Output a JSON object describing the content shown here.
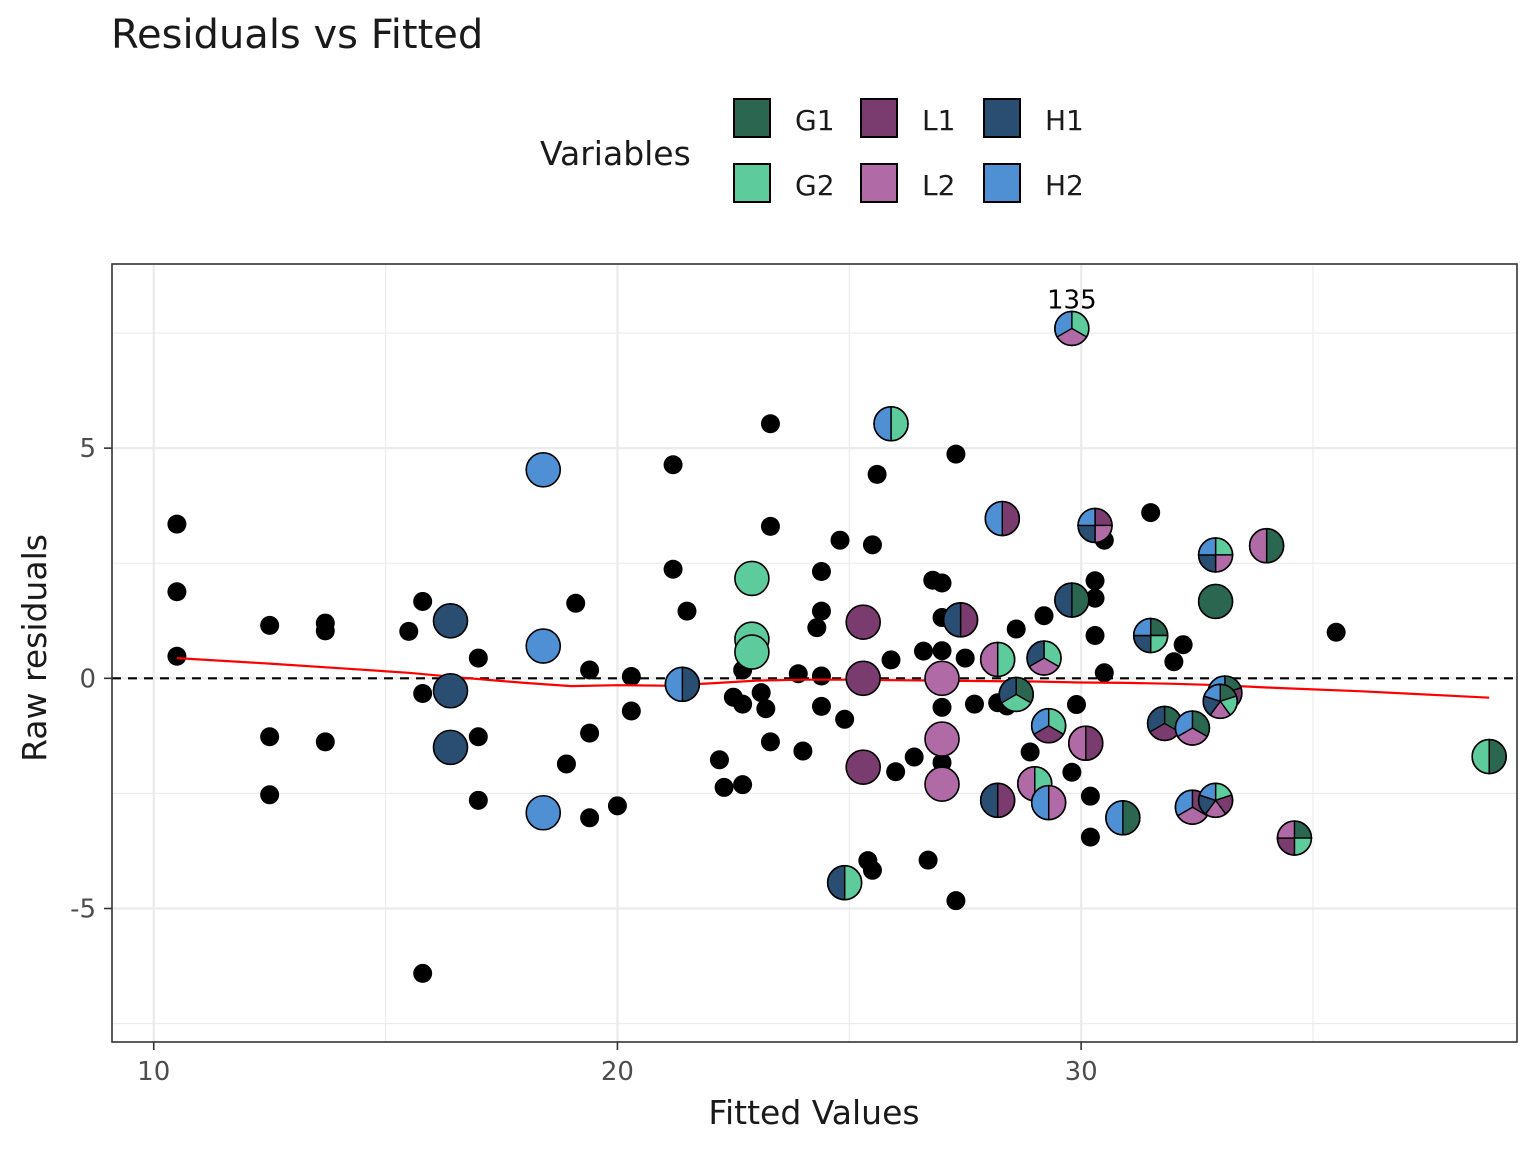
{
  "chart_data": {
    "type": "scatter",
    "title": "Residuals vs Fitted",
    "xlabel": "Fitted Values",
    "ylabel": "Raw residuals",
    "xlim": [
      9.1,
      39.4
    ],
    "ylim": [
      -7.9,
      9.0
    ],
    "xticks": [
      10,
      20,
      30
    ],
    "yticks": [
      -5,
      0,
      5
    ],
    "xtick_labels": [
      "10",
      "20",
      "30"
    ],
    "ytick_labels": [
      "-5",
      "0",
      "5"
    ],
    "grid": true,
    "reference_line": {
      "y": 0,
      "style": "dashed",
      "color": "#000000"
    },
    "smooth": {
      "color": "#ff0000",
      "x": [
        10.5,
        12.5,
        14.0,
        15.5,
        16.8,
        18.0,
        19.0,
        20.0,
        21.0,
        22.0,
        23.0,
        24.0,
        25.0,
        26.0,
        27.0,
        28.0,
        29.0,
        30.0,
        31.0,
        32.0,
        33.0,
        34.0,
        35.0,
        36.0,
        37.0,
        38.0,
        38.8
      ],
      "y": [
        0.44,
        0.32,
        0.22,
        0.12,
        0.0,
        -0.1,
        -0.17,
        -0.15,
        -0.16,
        -0.11,
        -0.05,
        -0.03,
        -0.03,
        -0.04,
        -0.05,
        -0.06,
        -0.07,
        -0.09,
        -0.1,
        -0.12,
        -0.15,
        -0.2,
        -0.24,
        -0.28,
        -0.33,
        -0.38,
        -0.42
      ]
    },
    "legend": {
      "title": "Variables",
      "position": "top",
      "entries": [
        {
          "label": "G1",
          "color": "#2B6651"
        },
        {
          "label": "L1",
          "color": "#7A3C6E"
        },
        {
          "label": "H1",
          "color": "#2A4D72"
        },
        {
          "label": "G2",
          "color": "#5ECB9D"
        },
        {
          "label": "L2",
          "color": "#B06AA6"
        },
        {
          "label": "H2",
          "color": "#4F90D5"
        }
      ]
    },
    "point_label": {
      "text": "135",
      "x": 29.8,
      "y": 7.6
    },
    "points": [
      [
        10.5,
        3.35
      ],
      [
        10.5,
        1.88
      ],
      [
        10.5,
        0.48
      ],
      [
        12.5,
        1.15
      ],
      [
        12.5,
        -1.27
      ],
      [
        12.5,
        -2.53
      ],
      [
        13.7,
        1.2
      ],
      [
        13.7,
        1.03
      ],
      [
        13.7,
        -1.38
      ],
      [
        15.5,
        1.02
      ],
      [
        15.8,
        1.67
      ],
      [
        15.8,
        -0.33
      ],
      [
        15.8,
        -6.41
      ],
      [
        17.0,
        0.44
      ],
      [
        17.0,
        -1.27
      ],
      [
        17.0,
        -2.65
      ],
      [
        18.9,
        -1.86
      ],
      [
        19.1,
        1.63
      ],
      [
        19.4,
        0.18
      ],
      [
        19.4,
        -1.19
      ],
      [
        19.4,
        -3.03
      ],
      [
        20.0,
        -2.77
      ],
      [
        20.3,
        0.04
      ],
      [
        20.3,
        -0.71
      ],
      [
        21.2,
        4.64
      ],
      [
        21.2,
        2.37
      ],
      [
        21.5,
        1.46
      ],
      [
        22.2,
        -1.77
      ],
      [
        22.3,
        -2.37
      ],
      [
        22.5,
        -0.41
      ],
      [
        22.7,
        0.18
      ],
      [
        22.7,
        -0.56
      ],
      [
        22.7,
        -2.31
      ],
      [
        23.1,
        -0.31
      ],
      [
        23.2,
        -0.66
      ],
      [
        23.3,
        5.53
      ],
      [
        23.3,
        3.3
      ],
      [
        23.3,
        -1.38
      ],
      [
        23.9,
        0.1
      ],
      [
        24.0,
        -1.58
      ],
      [
        24.4,
        2.32
      ],
      [
        24.4,
        1.46
      ],
      [
        24.4,
        0.05
      ],
      [
        24.4,
        -0.61
      ],
      [
        24.3,
        1.1
      ],
      [
        24.8,
        3.0
      ],
      [
        24.9,
        -0.89
      ],
      [
        25.5,
        2.9
      ],
      [
        25.6,
        4.43
      ],
      [
        25.4,
        -3.96
      ],
      [
        25.5,
        -4.17
      ],
      [
        25.9,
        0.4
      ],
      [
        26.0,
        -2.03
      ],
      [
        26.4,
        -1.71
      ],
      [
        26.6,
        0.59
      ],
      [
        26.7,
        -3.95
      ],
      [
        26.8,
        2.13
      ],
      [
        27.0,
        2.07
      ],
      [
        27.0,
        1.32
      ],
      [
        27.0,
        0.6
      ],
      [
        27.0,
        -0.63
      ],
      [
        27.0,
        -1.83
      ],
      [
        27.3,
        4.87
      ],
      [
        27.3,
        -4.83
      ],
      [
        27.5,
        0.44
      ],
      [
        27.7,
        -0.56
      ],
      [
        28.2,
        -0.53
      ],
      [
        28.4,
        -0.6
      ],
      [
        28.6,
        1.07
      ],
      [
        28.9,
        -1.6
      ],
      [
        29.2,
        1.36
      ],
      [
        29.8,
        -2.04
      ],
      [
        29.9,
        -0.57
      ],
      [
        30.1,
        -1.31
      ],
      [
        30.2,
        -2.56
      ],
      [
        30.2,
        -3.45
      ],
      [
        30.3,
        2.12
      ],
      [
        30.3,
        1.74
      ],
      [
        30.3,
        0.93
      ],
      [
        30.5,
        0.12
      ],
      [
        30.5,
        3.0
      ],
      [
        31.5,
        3.6
      ],
      [
        32.0,
        0.36
      ],
      [
        32.2,
        0.73
      ],
      [
        35.5,
        1.0
      ]
    ],
    "markers": [
      {
        "x": 18.4,
        "y": 4.53,
        "vars": [
          "H2"
        ]
      },
      {
        "x": 18.4,
        "y": 0.7,
        "vars": [
          "H2"
        ]
      },
      {
        "x": 18.4,
        "y": -2.92,
        "vars": [
          "H2"
        ]
      },
      {
        "x": 16.4,
        "y": 1.25,
        "vars": [
          "H1"
        ]
      },
      {
        "x": 16.4,
        "y": -0.27,
        "vars": [
          "H1"
        ]
      },
      {
        "x": 16.4,
        "y": -1.5,
        "vars": [
          "H1"
        ]
      },
      {
        "x": 22.9,
        "y": 2.17,
        "vars": [
          "G2"
        ]
      },
      {
        "x": 22.9,
        "y": 0.85,
        "vars": [
          "G2"
        ]
      },
      {
        "x": 22.9,
        "y": 0.57,
        "vars": [
          "G2"
        ]
      },
      {
        "x": 21.4,
        "y": -0.13,
        "vars": [
          "H1",
          "H2"
        ]
      },
      {
        "x": 24.9,
        "y": -4.44,
        "vars": [
          "G2",
          "H1"
        ]
      },
      {
        "x": 25.9,
        "y": 5.53,
        "vars": [
          "G2",
          "H2"
        ]
      },
      {
        "x": 25.3,
        "y": 1.22,
        "vars": [
          "L1"
        ]
      },
      {
        "x": 25.3,
        "y": 0.0,
        "vars": [
          "L1"
        ]
      },
      {
        "x": 25.3,
        "y": -1.93,
        "vars": [
          "L1"
        ]
      },
      {
        "x": 27.0,
        "y": 0.0,
        "vars": [
          "L2"
        ]
      },
      {
        "x": 27.0,
        "y": -1.32,
        "vars": [
          "L2"
        ]
      },
      {
        "x": 27.0,
        "y": -2.3,
        "vars": [
          "L2"
        ]
      },
      {
        "x": 27.4,
        "y": 1.27,
        "vars": [
          "L1",
          "H1"
        ]
      },
      {
        "x": 28.3,
        "y": 3.47,
        "vars": [
          "L1",
          "H2"
        ]
      },
      {
        "x": 28.2,
        "y": 0.41,
        "vars": [
          "G2",
          "L2"
        ]
      },
      {
        "x": 28.2,
        "y": -2.65,
        "vars": [
          "L1",
          "H1"
        ]
      },
      {
        "x": 28.6,
        "y": -0.35,
        "vars": [
          "G1",
          "G2",
          "H1"
        ]
      },
      {
        "x": 29.0,
        "y": -2.29,
        "vars": [
          "G2",
          "L2"
        ]
      },
      {
        "x": 29.2,
        "y": 0.44,
        "vars": [
          "G2",
          "L2",
          "H1"
        ]
      },
      {
        "x": 29.3,
        "y": -1.03,
        "vars": [
          "G2",
          "L1",
          "H2"
        ]
      },
      {
        "x": 29.3,
        "y": -2.7,
        "vars": [
          "L2",
          "H2"
        ]
      },
      {
        "x": 29.8,
        "y": 7.6,
        "vars": [
          "G2",
          "L2",
          "H2"
        ]
      },
      {
        "x": 29.8,
        "y": 1.7,
        "vars": [
          "G1",
          "H1"
        ]
      },
      {
        "x": 30.1,
        "y": -1.41,
        "vars": [
          "L1",
          "L2"
        ]
      },
      {
        "x": 30.3,
        "y": 3.32,
        "vars": [
          "L1",
          "L2",
          "H1",
          "H2"
        ]
      },
      {
        "x": 30.9,
        "y": -3.03,
        "vars": [
          "G1",
          "H2"
        ]
      },
      {
        "x": 31.5,
        "y": 0.93,
        "vars": [
          "G1",
          "G2",
          "H1",
          "H2"
        ]
      },
      {
        "x": 31.8,
        "y": -0.98,
        "vars": [
          "G1",
          "L1",
          "H1"
        ]
      },
      {
        "x": 32.4,
        "y": -1.08,
        "vars": [
          "G1",
          "L2",
          "H2"
        ]
      },
      {
        "x": 32.4,
        "y": -2.8,
        "vars": [
          "L1",
          "L2",
          "H2"
        ]
      },
      {
        "x": 32.9,
        "y": 2.68,
        "vars": [
          "G2",
          "L2",
          "H1",
          "H2"
        ]
      },
      {
        "x": 32.9,
        "y": 1.67,
        "vars": [
          "G1"
        ]
      },
      {
        "x": 32.9,
        "y": -2.65,
        "vars": [
          "G2",
          "L1",
          "L2",
          "H1",
          "H2"
        ]
      },
      {
        "x": 33.1,
        "y": -0.32,
        "vars": [
          "G1",
          "L1",
          "L2",
          "H1",
          "H2"
        ]
      },
      {
        "x": 33.0,
        "y": -0.5,
        "vars": [
          "G1",
          "G2",
          "L2",
          "H1",
          "H2"
        ]
      },
      {
        "x": 34.0,
        "y": 2.88,
        "vars": [
          "G1",
          "L2"
        ]
      },
      {
        "x": 34.6,
        "y": -3.47,
        "vars": [
          "G1",
          "G2",
          "L1",
          "L2"
        ]
      },
      {
        "x": 38.8,
        "y": -1.7,
        "vars": [
          "G1",
          "G2"
        ]
      }
    ]
  }
}
